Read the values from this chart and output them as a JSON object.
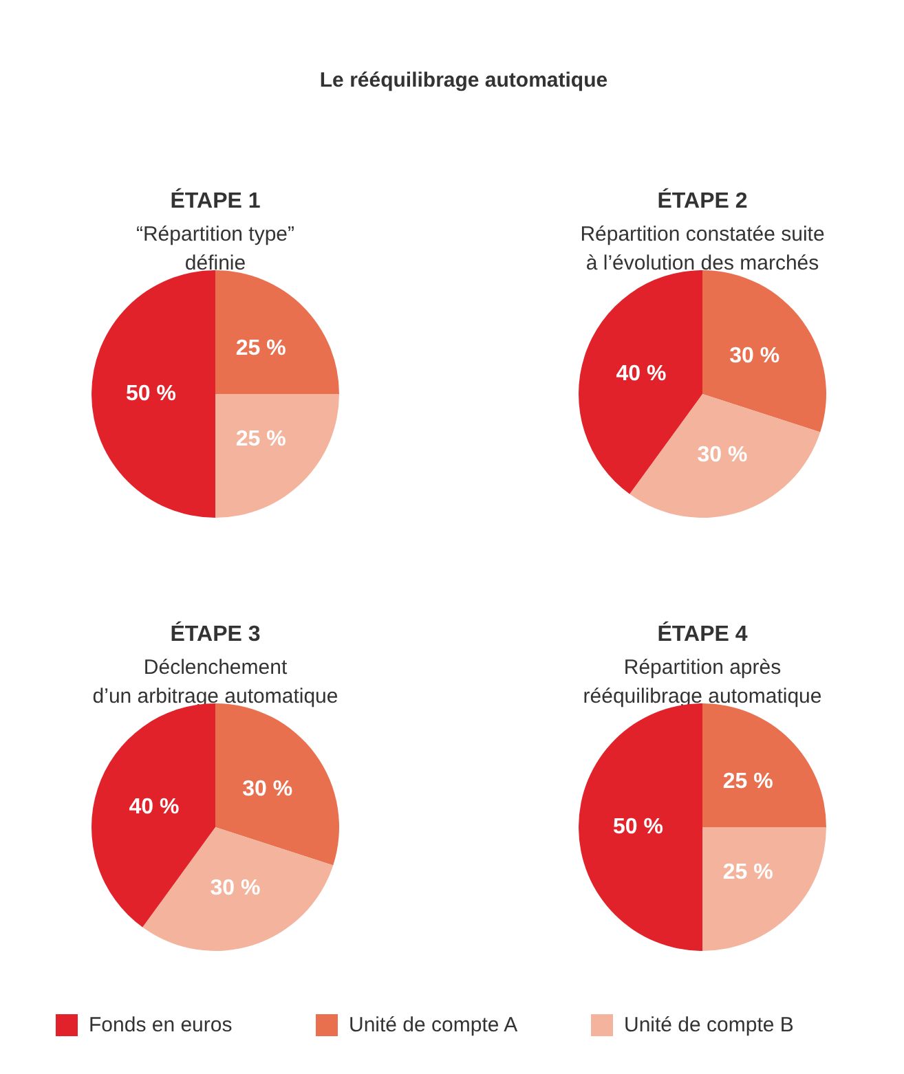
{
  "chart_data": [
    {
      "type": "other",
      "title": "Le rééquilibrage automatique"
    },
    {
      "type": "pie",
      "title": "ÉTAPE 1",
      "subtitle": "“Répartition type”\ndéfinie",
      "categories": [
        "Unité de compte A",
        "Unité de compte B",
        "Fonds en euros"
      ],
      "values": [
        25,
        25,
        50
      ],
      "colors": [
        "#e8704f",
        "#f4b39c",
        "#e1222a"
      ],
      "value_labels": [
        "25 %",
        "25 %",
        "50 %"
      ],
      "legend": "bottom"
    },
    {
      "type": "pie",
      "title": "ÉTAPE 2",
      "subtitle": "Répartition constatée suite\nà l’évolution des marchés",
      "categories": [
        null,
        null,
        null
      ],
      "values": [
        30,
        30,
        40
      ],
      "colors": [
        "#e8704f",
        "#f4b39c",
        "#e1222a"
      ],
      "value_labels": [
        "30 %",
        "30 %",
        "40 %"
      ]
    },
    {
      "type": "pie",
      "title": "ÉTAPE 3",
      "subtitle": "Déclenchement\nd’un arbitrage automatique",
      "categories": [
        null,
        null,
        null
      ],
      "values": [
        30,
        30,
        40
      ],
      "colors": [
        "#e8704f",
        "#f4b39c",
        "#e1222a"
      ],
      "value_labels": [
        "30 %",
        "30 %",
        "40 %"
      ]
    },
    {
      "type": "pie",
      "title": "ÉTAPE 4",
      "subtitle": "Répartition après\nrééquilibrage automatique",
      "categories": [
        null,
        null,
        null
      ],
      "values": [
        25,
        25,
        50
      ],
      "colors": [
        "#e8704f",
        "#f4b39c",
        "#e1222a"
      ],
      "value_labels": [
        "25 %",
        "25 %",
        "50 %"
      ]
    }
  ]
}
